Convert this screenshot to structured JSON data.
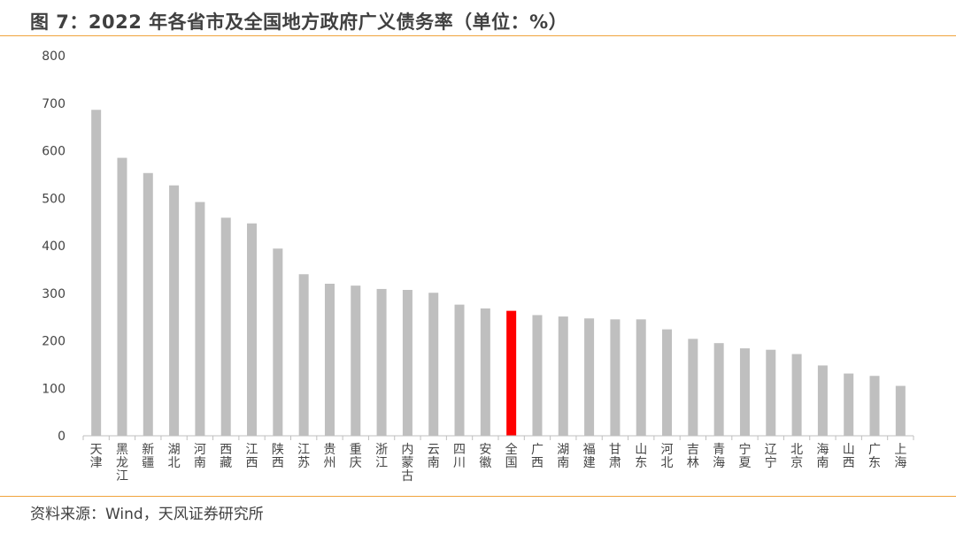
{
  "title": "图 7：2022 年各省市及全国地方政府广义债务率（单位：%）",
  "source": "资料来源：Wind，天风证券研究所",
  "colors": {
    "default_bar": "#bfbfbf",
    "highlight_bar": "#ff0000",
    "rule": "#f0a33c"
  },
  "chart_data": {
    "type": "bar",
    "title": "图 7：2022 年各省市及全国地方政府广义债务率（单位：%）",
    "xlabel": "",
    "ylabel": "",
    "ylim": [
      0,
      800
    ],
    "yticks": [
      0,
      100,
      200,
      300,
      400,
      500,
      600,
      700,
      800
    ],
    "grid": false,
    "highlight_category": "全国",
    "categories": [
      "天津",
      "黑龙江",
      "新疆",
      "湖北",
      "河南",
      "西藏",
      "江西",
      "陕西",
      "江苏",
      "贵州",
      "重庆",
      "浙江",
      "内蒙古",
      "云南",
      "四川",
      "安徽",
      "全国",
      "广西",
      "湖南",
      "福建",
      "甘肃",
      "山东",
      "河北",
      "吉林",
      "青海",
      "宁夏",
      "辽宁",
      "北京",
      "海南",
      "山西",
      "广东",
      "上海"
    ],
    "values": [
      686,
      585,
      553,
      527,
      492,
      459,
      447,
      394,
      340,
      320,
      316,
      309,
      307,
      301,
      276,
      268,
      263,
      254,
      251,
      247,
      245,
      245,
      224,
      204,
      195,
      184,
      181,
      172,
      148,
      131,
      126,
      105
    ]
  }
}
